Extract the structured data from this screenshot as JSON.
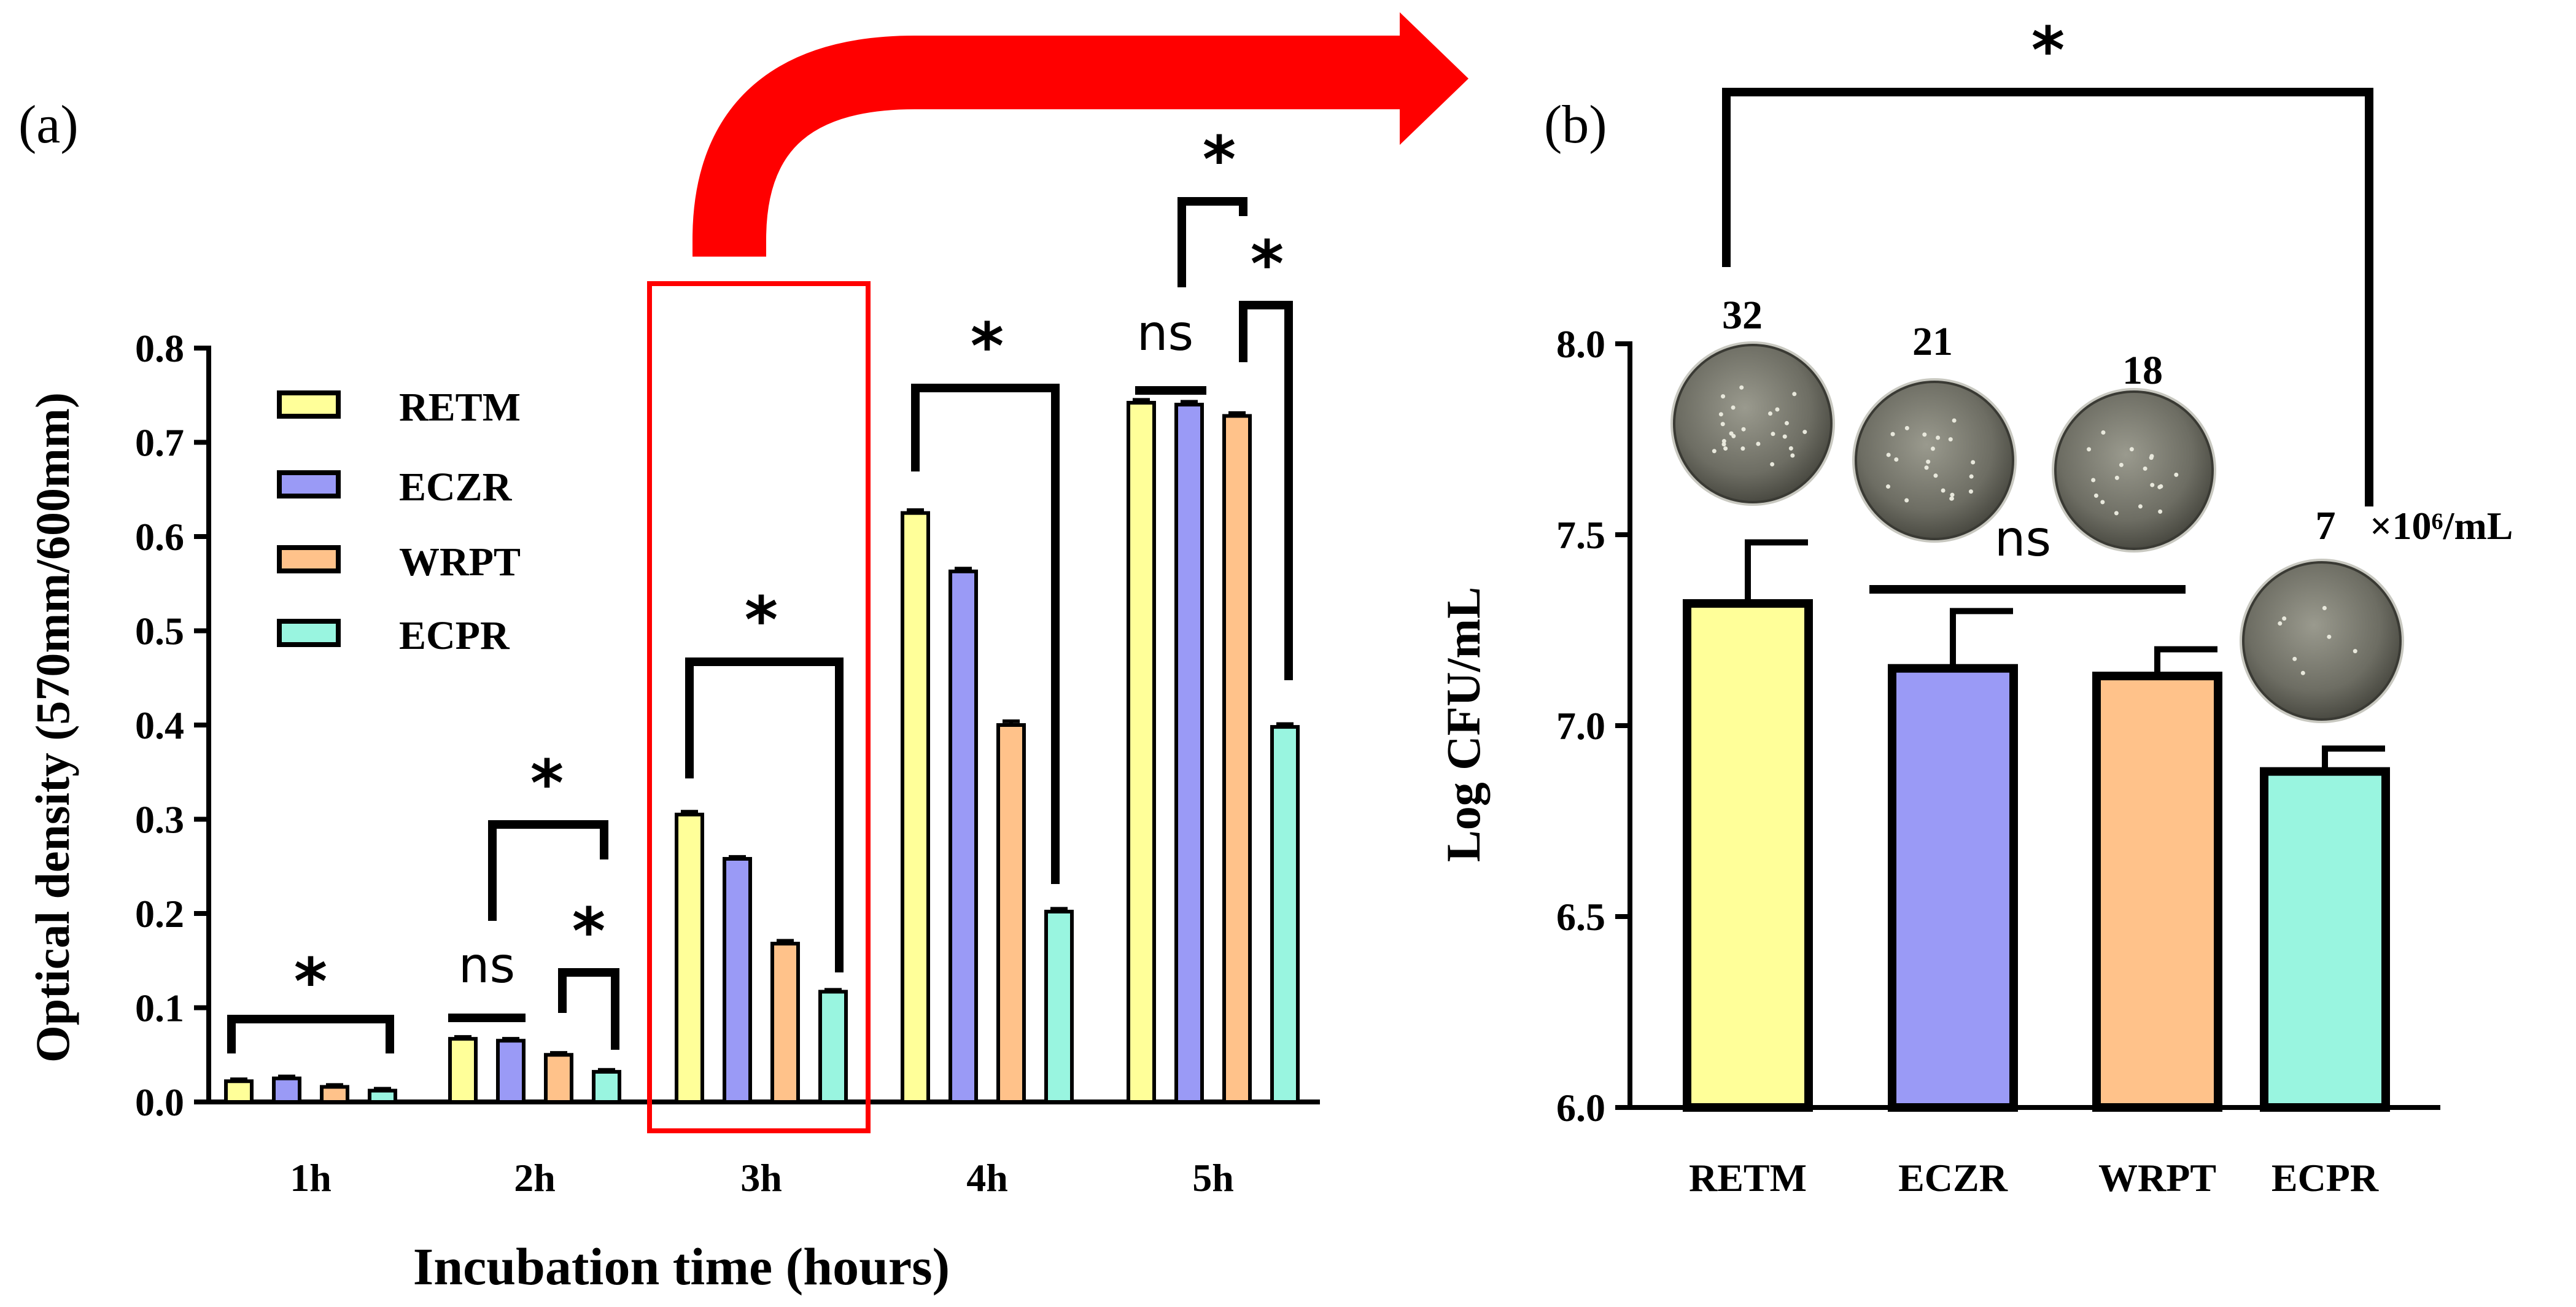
{
  "colors": {
    "RETM": "#FFFF99",
    "ECZR": "#9A9AF6",
    "WRPT": "#FFC28A",
    "ECPR": "#99F5E0",
    "highlight": "#FF0000"
  },
  "chart_data": [
    {
      "panel_label": "(a)",
      "type": "bar",
      "title": "",
      "xlabel": "Incubation time (hours)",
      "ylabel": "Optical density (570mm/600mm)",
      "ylim": [
        0,
        0.8
      ],
      "yticks": [
        "0.0",
        "0.1",
        "0.2",
        "0.3",
        "0.4",
        "0.5",
        "0.6",
        "0.7",
        "0.8"
      ],
      "categories": [
        "1h",
        "2h",
        "3h",
        "4h",
        "5h"
      ],
      "legend": [
        "RETM",
        "ECZR",
        "WRPT",
        "ECPR"
      ],
      "legend_position": "top-left",
      "series": [
        {
          "name": "RETM",
          "values": [
            0.022,
            0.067,
            0.305,
            0.625,
            0.742
          ],
          "errors": [
            0.002,
            0.002,
            0.003,
            0.003,
            0.003
          ]
        },
        {
          "name": "ECZR",
          "values": [
            0.025,
            0.065,
            0.258,
            0.563,
            0.74
          ],
          "errors": [
            0.002,
            0.002,
            0.002,
            0.003,
            0.003
          ]
        },
        {
          "name": "WRPT",
          "values": [
            0.016,
            0.05,
            0.168,
            0.4,
            0.728
          ],
          "errors": [
            0.002,
            0.002,
            0.003,
            0.004,
            0.003
          ]
        },
        {
          "name": "ECPR",
          "values": [
            0.012,
            0.032,
            0.117,
            0.202,
            0.398
          ],
          "errors": [
            0.002,
            0.002,
            0.002,
            0.003,
            0.003
          ]
        }
      ],
      "highlight_category": "3h",
      "significance": [
        {
          "category": "1h",
          "from": "RETM",
          "to": "ECPR",
          "label": "*"
        },
        {
          "category": "2h",
          "from": "RETM",
          "to": "ECZR",
          "label": "ns"
        },
        {
          "category": "2h",
          "from": "RETM",
          "to": "ECPR",
          "label": "*"
        },
        {
          "category": "2h",
          "from": "WRPT",
          "to": "ECPR",
          "label": "*"
        },
        {
          "category": "3h",
          "from": "RETM",
          "to": "ECPR",
          "label": "*"
        },
        {
          "category": "4h",
          "from": "RETM",
          "to": "ECPR",
          "label": "*"
        },
        {
          "category": "5h",
          "from": "RETM",
          "to": "ECZR",
          "label": "ns"
        },
        {
          "category": "5h",
          "from": "ECZR",
          "to": "WRPT",
          "label": "*"
        },
        {
          "category": "5h",
          "from": "WRPT",
          "to": "ECPR",
          "label": "*"
        }
      ]
    },
    {
      "panel_label": "(b)",
      "type": "bar",
      "title": "",
      "xlabel": "",
      "ylabel": "Log CFU/mL",
      "ylim": [
        6.0,
        8.0
      ],
      "yticks": [
        "6.0",
        "6.5",
        "7.0",
        "7.5",
        "8.0"
      ],
      "categories": [
        "RETM",
        "ECZR",
        "WRPT",
        "ECPR"
      ],
      "values": [
        7.32,
        7.15,
        7.13,
        6.88
      ],
      "errors": [
        0.16,
        0.15,
        0.07,
        0.06
      ],
      "colony_counts": [
        "32",
        "21",
        "18",
        "7"
      ],
      "unit_note": "×10⁶/mL",
      "significance": [
        {
          "from": "RETM",
          "to": "ECPR",
          "label": "*"
        },
        {
          "from": "ECZR",
          "to": "WRPT",
          "label": "ns"
        }
      ]
    }
  ]
}
